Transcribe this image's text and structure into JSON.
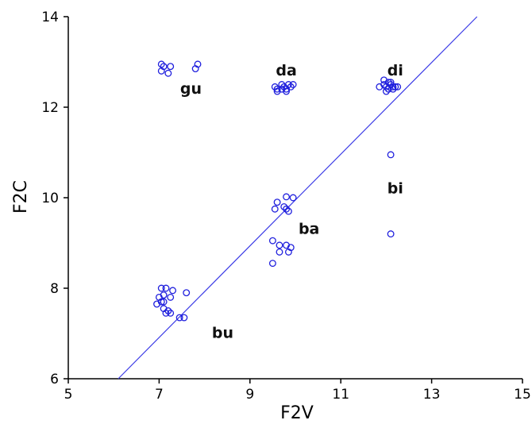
{
  "chart_data": {
    "type": "scatter",
    "xlabel": "F2V",
    "ylabel": "F2C",
    "xlim": [
      5,
      15
    ],
    "ylim": [
      6,
      14
    ],
    "x_ticks": [
      5,
      7,
      9,
      11,
      13,
      15
    ],
    "y_ticks": [
      6,
      8,
      10,
      12,
      14
    ],
    "grid": false,
    "colors": {
      "points": "#1f1fdd",
      "line": "#3a3ae6",
      "axis": "#000000"
    },
    "regression_line": {
      "x": [
        6.1,
        14.0
      ],
      "y": [
        6.0,
        14.0
      ]
    },
    "labels": [
      {
        "text": "gu",
        "x": 7.7,
        "y": 12.3
      },
      {
        "text": "da",
        "x": 9.8,
        "y": 12.7
      },
      {
        "text": "di",
        "x": 12.2,
        "y": 12.7
      },
      {
        "text": "bi",
        "x": 12.2,
        "y": 10.1
      },
      {
        "text": "ba",
        "x": 10.3,
        "y": 9.2
      },
      {
        "text": "bu",
        "x": 8.4,
        "y": 6.9
      }
    ],
    "series": [
      {
        "points": [
          [
            7.05,
            12.95
          ],
          [
            7.1,
            12.9
          ],
          [
            7.25,
            12.9
          ],
          [
            7.05,
            12.8
          ],
          [
            7.2,
            12.75
          ],
          [
            7.85,
            12.95
          ],
          [
            7.8,
            12.85
          ],
          [
            9.55,
            12.45
          ],
          [
            9.6,
            12.4
          ],
          [
            9.7,
            12.5
          ],
          [
            9.75,
            12.45
          ],
          [
            9.8,
            12.4
          ],
          [
            9.85,
            12.5
          ],
          [
            9.9,
            12.45
          ],
          [
            9.8,
            12.35
          ],
          [
            9.6,
            12.35
          ],
          [
            9.7,
            12.4
          ],
          [
            9.95,
            12.5
          ],
          [
            11.85,
            12.45
          ],
          [
            11.95,
            12.5
          ],
          [
            12.0,
            12.45
          ],
          [
            12.05,
            12.55
          ],
          [
            12.1,
            12.5
          ],
          [
            12.15,
            12.45
          ],
          [
            12.2,
            12.45
          ],
          [
            12.25,
            12.45
          ],
          [
            12.0,
            12.35
          ],
          [
            12.05,
            12.4
          ],
          [
            12.1,
            12.55
          ],
          [
            12.15,
            12.4
          ],
          [
            11.95,
            12.6
          ],
          [
            12.1,
            10.95
          ],
          [
            12.1,
            9.2
          ],
          [
            9.55,
            9.75
          ],
          [
            9.6,
            9.9
          ],
          [
            9.75,
            9.8
          ],
          [
            9.8,
            10.02
          ],
          [
            9.95,
            10.0
          ],
          [
            9.85,
            9.7
          ],
          [
            9.8,
            9.75
          ],
          [
            9.5,
            9.05
          ],
          [
            9.65,
            8.95
          ],
          [
            9.8,
            8.95
          ],
          [
            9.9,
            8.9
          ],
          [
            9.65,
            8.8
          ],
          [
            9.85,
            8.8
          ],
          [
            9.5,
            8.55
          ],
          [
            7.05,
            8.0
          ],
          [
            7.15,
            8.0
          ],
          [
            7.3,
            7.95
          ],
          [
            7.0,
            7.8
          ],
          [
            7.1,
            7.85
          ],
          [
            7.25,
            7.8
          ],
          [
            6.95,
            7.65
          ],
          [
            7.05,
            7.7
          ],
          [
            7.1,
            7.7
          ],
          [
            7.6,
            7.9
          ],
          [
            7.1,
            7.55
          ],
          [
            7.15,
            7.45
          ],
          [
            7.25,
            7.45
          ],
          [
            7.2,
            7.5
          ],
          [
            7.45,
            7.35
          ],
          [
            7.55,
            7.35
          ]
        ]
      }
    ]
  }
}
